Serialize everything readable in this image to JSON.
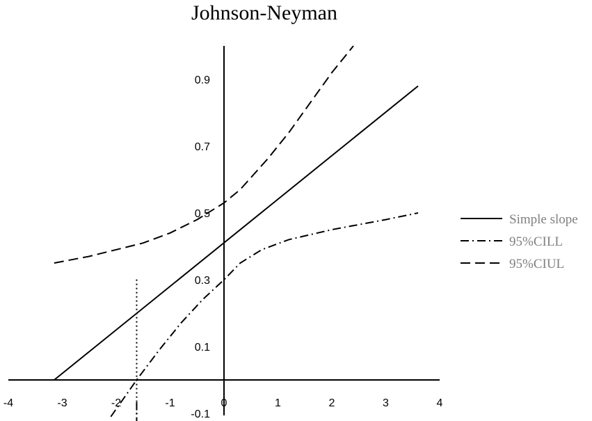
{
  "chart_data": {
    "type": "line",
    "title": "Johnson-Neyman",
    "xlabel": "",
    "ylabel": "",
    "xlim": [
      -4,
      4
    ],
    "ylim": [
      -0.1,
      1.0
    ],
    "x_ticks": [
      -4,
      -3,
      -2,
      -1,
      0,
      1,
      2,
      3,
      4
    ],
    "x_tick_labels": [
      "-4",
      "-3",
      "-2",
      "-1",
      "0",
      "1",
      "2",
      "3",
      "4"
    ],
    "y_ticks": [
      0.9,
      0.7,
      0.5,
      0.3,
      0.1,
      -0.1
    ],
    "y_tick_labels": [
      "0.9",
      "0.7",
      "0.5",
      "0.3",
      "0.1",
      "-0.1"
    ],
    "grid": false,
    "legend_position": "right",
    "series": [
      {
        "name": "Simple slope",
        "style": "solid",
        "x": [
          -3.15,
          3.6
        ],
        "y": [
          0.0,
          0.88
        ]
      },
      {
        "name": "95%CILL",
        "style": "dash-dot",
        "x": [
          -2.1,
          -1.62,
          -1.2,
          -0.8,
          -0.4,
          -0.2,
          0.0,
          0.3,
          0.7,
          1.2,
          2.0,
          3.0,
          3.6
        ],
        "y": [
          -0.11,
          0.0,
          0.09,
          0.17,
          0.24,
          0.27,
          0.3,
          0.35,
          0.39,
          0.42,
          0.45,
          0.48,
          0.5
        ]
      },
      {
        "name": "95%CIUL",
        "style": "dashed",
        "x": [
          -3.15,
          -2.5,
          -2.0,
          -1.5,
          -1.0,
          -0.5,
          -0.2,
          0.0,
          0.3,
          0.8,
          1.2,
          1.6,
          2.0,
          2.4
        ],
        "y": [
          0.35,
          0.37,
          0.39,
          0.41,
          0.44,
          0.48,
          0.51,
          0.53,
          0.57,
          0.66,
          0.74,
          0.83,
          0.92,
          1.0
        ]
      }
    ],
    "annotations": [
      {
        "type": "vertical-line",
        "style": "dotted",
        "x": -1.62,
        "y_range": [
          -0.1,
          0.28
        ]
      }
    ]
  }
}
